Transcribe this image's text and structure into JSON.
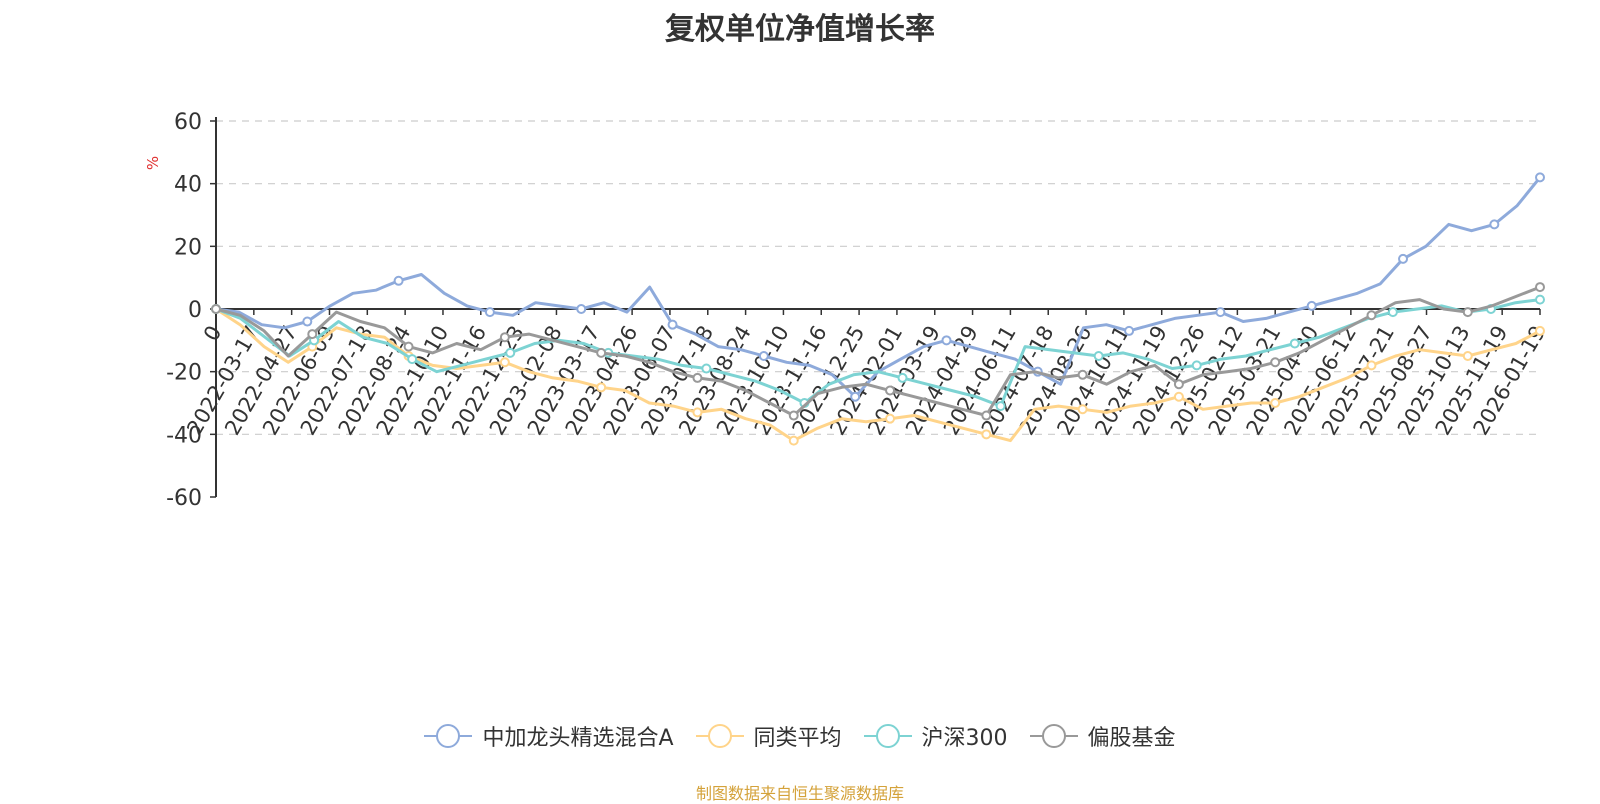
{
  "chart_data": {
    "type": "line",
    "title": "复权单位净值增长率",
    "ylabel": "%",
    "ylim": [
      -60,
      60
    ],
    "yticks": [
      -60,
      -40,
      -20,
      0,
      20,
      40,
      60
    ],
    "grid": true,
    "legend_position": "bottom",
    "x_tick_labels": [
      "0",
      "2022-03-17",
      "2022-04-27",
      "2022-06-09",
      "2022-07-18",
      "2022-08-24",
      "2022-10-10",
      "2022-11-16",
      "2022-12-23",
      "2023-02-08",
      "2023-03-17",
      "2023-04-26",
      "2023-06-07",
      "2023-07-18",
      "2023-08-24",
      "2023-10-10",
      "2023-11-16",
      "2023-12-25",
      "2024-02-01",
      "2024-03-19",
      "2024-04-29",
      "2024-06-11",
      "2024-07-18",
      "2024-08-26",
      "2024-10-11",
      "2024-11-19",
      "2024-12-26",
      "2025-02-12",
      "2025-03-21",
      "2025-04-30",
      "2025-06-12",
      "2025-07-21",
      "2025-08-27",
      "2025-10-13",
      "2025-11-19",
      "2026-01-19"
    ],
    "series": [
      {
        "name": "中加龙头精选混合A",
        "color": "#8eaadb",
        "values": [
          0,
          -1,
          -5,
          -6,
          -4,
          1,
          5,
          6,
          9,
          11,
          5,
          1,
          -1,
          -2,
          2,
          1,
          0,
          2,
          -1,
          7,
          -5,
          -8,
          -12,
          -13,
          -15,
          -17,
          -18,
          -21,
          -28,
          -20,
          -16,
          -12,
          -10,
          -12,
          -14,
          -16,
          -20,
          -24,
          -6,
          -5,
          -7,
          -5,
          -3,
          -2,
          -1,
          -4,
          -3,
          -1,
          1,
          3,
          5,
          8,
          16,
          20,
          27,
          25,
          27,
          33,
          42
        ]
      },
      {
        "name": "同类平均",
        "color": "#ffd48a",
        "values": [
          0,
          -5,
          -12,
          -17,
          -12,
          -6,
          -8,
          -9,
          -15,
          -18,
          -19,
          -18,
          -17,
          -20,
          -22,
          -23,
          -25,
          -26,
          -30,
          -31,
          -33,
          -32,
          -35,
          -37,
          -42,
          -38,
          -35,
          -36,
          -35,
          -34,
          -36,
          -38,
          -40,
          -42,
          -32,
          -31,
          -32,
          -33,
          -31,
          -30,
          -28,
          -32,
          -31,
          -30,
          -30,
          -28,
          -25,
          -22,
          -18,
          -15,
          -13,
          -14,
          -15,
          -13,
          -11,
          -7
        ]
      },
      {
        "name": "沪深300",
        "color": "#7dd3d3",
        "values": [
          0,
          -3,
          -9,
          -15,
          -10,
          -4,
          -9,
          -11,
          -16,
          -20,
          -18,
          -16,
          -14,
          -11,
          -10,
          -11,
          -14,
          -15,
          -16,
          -18,
          -19,
          -21,
          -23,
          -26,
          -30,
          -24,
          -21,
          -20,
          -22,
          -24,
          -26,
          -28,
          -31,
          -12,
          -13,
          -14,
          -15,
          -14,
          -16,
          -19,
          -18,
          -16,
          -15,
          -13,
          -11,
          -9,
          -6,
          -3,
          -1,
          0,
          1,
          -1,
          0,
          2,
          3
        ]
      },
      {
        "name": "偏股基金",
        "color": "#999999",
        "values": [
          0,
          -2,
          -7,
          -15,
          -8,
          -1,
          -4,
          -6,
          -12,
          -14,
          -11,
          -13,
          -9,
          -8,
          -10,
          -12,
          -14,
          -15,
          -17,
          -20,
          -22,
          -23,
          -26,
          -30,
          -34,
          -27,
          -25,
          -24,
          -26,
          -28,
          -30,
          -32,
          -34,
          -21,
          -20,
          -22,
          -21,
          -24,
          -20,
          -18,
          -24,
          -21,
          -20,
          -19,
          -17,
          -14,
          -10,
          -6,
          -2,
          2,
          3,
          0,
          -1,
          1,
          4,
          7
        ]
      }
    ]
  },
  "source_text": "制图数据来自恒生聚源数据库"
}
